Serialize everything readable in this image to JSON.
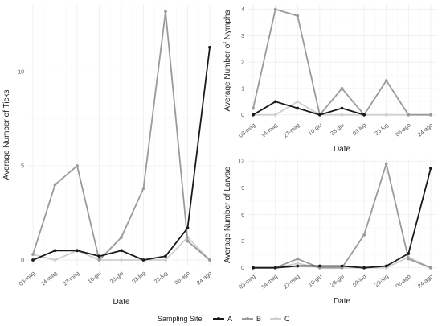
{
  "colors": {
    "A": "#1a1a1a",
    "B": "#9a9a9a",
    "C": "#cfcfcf"
  },
  "legend": {
    "title": "Sampling Site",
    "entries": [
      "A",
      "B",
      "C"
    ],
    "placement": "bottom"
  },
  "chart_data": [
    {
      "type": "line",
      "xlabel": "Date",
      "ylabel": "Average Number of Ticks",
      "categories": [
        "03-mag",
        "14-mag",
        "27-mag",
        "10-giu",
        "23-giu",
        "03-lug",
        "23-lug",
        "06-ago",
        "24-ago"
      ],
      "ylim": [
        -0.3,
        13.6
      ],
      "yticks": [
        0,
        5,
        10
      ],
      "series": [
        {
          "name": "A",
          "values": [
            0.0,
            0.5,
            0.5,
            0.2,
            0.5,
            0.0,
            0.2,
            1.7,
            11.3
          ]
        },
        {
          "name": "B",
          "values": [
            0.3,
            4.0,
            5.0,
            0.0,
            1.2,
            3.8,
            13.2,
            1.0,
            0.0
          ]
        },
        {
          "name": "C",
          "values": [
            0.3,
            0.0,
            0.5,
            0.0,
            0.0,
            0.0,
            0.0,
            1.2,
            0.0
          ]
        }
      ]
    },
    {
      "type": "line",
      "xlabel": "Date",
      "ylabel": "Average Number of Nymphs",
      "categories": [
        "03-mag",
        "14-mag",
        "27-mag",
        "10-giu",
        "23-giu",
        "03-lug",
        "23-lug",
        "06-ago",
        "24-ago"
      ],
      "ylim": [
        -0.1,
        4.2
      ],
      "yticks": [
        0,
        1,
        2,
        3,
        4
      ],
      "series": [
        {
          "name": "A",
          "values": [
            0.0,
            0.5,
            0.25,
            0.0,
            0.25,
            0.0,
            null,
            null,
            null
          ]
        },
        {
          "name": "B",
          "values": [
            0.25,
            4.0,
            3.75,
            0.0,
            1.0,
            0.0,
            1.3,
            0.0,
            0.0
          ]
        },
        {
          "name": "C",
          "values": [
            0.0,
            0.0,
            0.5,
            0.0,
            0.0,
            0.0,
            0.0,
            0.0,
            0.0
          ]
        }
      ]
    },
    {
      "type": "line",
      "xlabel": "Date",
      "ylabel": "Average Number of Larvae",
      "categories": [
        "03-mag",
        "14-mag",
        "27-mag",
        "10-giu",
        "23-giu",
        "03-lug",
        "23-lug",
        "06-ago",
        "24-ago"
      ],
      "ylim": [
        -0.3,
        12.2
      ],
      "yticks": [
        0,
        3,
        6,
        9,
        12
      ],
      "series": [
        {
          "name": "A",
          "values": [
            0.0,
            0.0,
            0.2,
            0.2,
            0.2,
            0.0,
            0.2,
            1.6,
            11.2
          ]
        },
        {
          "name": "B",
          "values": [
            0.0,
            0.0,
            1.0,
            0.0,
            0.0,
            3.7,
            11.7,
            1.0,
            0.0
          ]
        },
        {
          "name": "C",
          "values": [
            0.0,
            0.0,
            0.5,
            0.0,
            0.0,
            0.0,
            0.0,
            1.2,
            0.0
          ]
        }
      ]
    }
  ]
}
